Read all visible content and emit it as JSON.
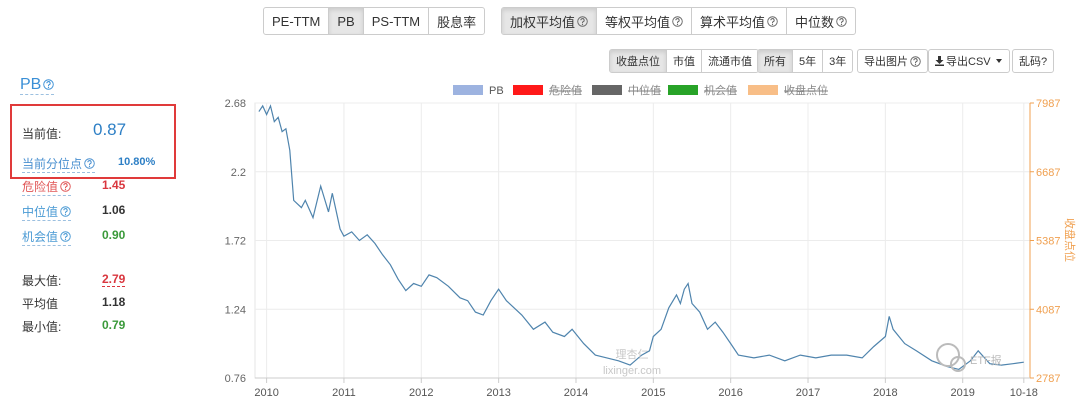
{
  "toolbar": {
    "metrics": [
      "PE-TTM",
      "PB",
      "PS-TTM",
      "股息率"
    ],
    "averages": [
      "加权平均值",
      "等权平均值",
      "算术平均值",
      "中位数"
    ],
    "series_options": [
      "收盘点位",
      "市值",
      "流通市值"
    ],
    "ranges": [
      "所有",
      "5年",
      "3年"
    ],
    "export_image": "导出图片",
    "export_csv": "导出CSV",
    "garbled": "乱码?"
  },
  "panel": {
    "title": "PB",
    "current": {
      "label": "当前值:",
      "value": "0.87"
    },
    "percentile": {
      "label": "当前分位点",
      "value": "10.80%"
    },
    "levels": [
      {
        "label": "危险值",
        "value": "1.45"
      },
      {
        "label": "中位值",
        "value": "1.06"
      },
      {
        "label": "机会值",
        "value": "0.90"
      }
    ],
    "stats": [
      {
        "label": "最大值:",
        "value": "2.79"
      },
      {
        "label": "平均值",
        "value": "1.18"
      },
      {
        "label": "最小值:",
        "value": "0.79"
      }
    ]
  },
  "chart_data": {
    "type": "line",
    "legend": [
      {
        "name": "PB",
        "color": "#9db3e0",
        "enabled": true
      },
      {
        "name": "危险值",
        "color": "#ff0000",
        "enabled": false
      },
      {
        "name": "中位值",
        "color": "#555555",
        "enabled": false
      },
      {
        "name": "机会值",
        "color": "#119911",
        "enabled": false
      },
      {
        "name": "收盘点位",
        "color": "#f7b77a",
        "enabled": false
      }
    ],
    "x": [
      2009.9,
      2009.95,
      2010.0,
      2010.05,
      2010.1,
      2010.15,
      2010.2,
      2010.25,
      2010.3,
      2010.35,
      2010.45,
      2010.5,
      2010.6,
      2010.7,
      2010.8,
      2010.85,
      2010.95,
      2011.0,
      2011.1,
      2011.2,
      2011.3,
      2011.4,
      2011.5,
      2011.6,
      2011.7,
      2011.8,
      2011.9,
      2012.0,
      2012.1,
      2012.2,
      2012.35,
      2012.5,
      2012.6,
      2012.7,
      2012.8,
      2012.9,
      2013.0,
      2013.1,
      2013.3,
      2013.45,
      2013.6,
      2013.7,
      2013.85,
      2013.95,
      2014.1,
      2014.25,
      2014.4,
      2014.55,
      2014.7,
      2014.85,
      2014.95,
      2015.0,
      2015.1,
      2015.2,
      2015.3,
      2015.35,
      2015.4,
      2015.45,
      2015.5,
      2015.6,
      2015.7,
      2015.8,
      2015.9,
      2016.0,
      2016.1,
      2016.3,
      2016.5,
      2016.7,
      2016.9,
      2017.1,
      2017.3,
      2017.5,
      2017.7,
      2017.85,
      2018.0,
      2018.05,
      2018.1,
      2018.25,
      2018.4,
      2018.6,
      2018.8,
      2018.95,
      2019.1,
      2019.2,
      2019.35,
      2019.5,
      2019.65,
      2019.79
    ],
    "series": [
      {
        "name": "PB",
        "color": "#4f84ad",
        "values": [
          2.62,
          2.66,
          2.6,
          2.66,
          2.55,
          2.58,
          2.48,
          2.5,
          2.35,
          2.0,
          1.95,
          2.0,
          1.88,
          2.1,
          1.92,
          2.05,
          1.8,
          1.75,
          1.78,
          1.72,
          1.76,
          1.7,
          1.62,
          1.55,
          1.45,
          1.37,
          1.42,
          1.4,
          1.48,
          1.46,
          1.4,
          1.32,
          1.3,
          1.22,
          1.2,
          1.3,
          1.38,
          1.3,
          1.2,
          1.1,
          1.15,
          1.08,
          1.05,
          1.1,
          1.0,
          0.92,
          0.9,
          0.88,
          0.85,
          0.92,
          0.95,
          1.05,
          1.1,
          1.25,
          1.34,
          1.28,
          1.38,
          1.42,
          1.28,
          1.22,
          1.1,
          1.15,
          1.08,
          1.0,
          0.92,
          0.9,
          0.92,
          0.88,
          0.92,
          0.9,
          0.92,
          0.92,
          0.9,
          0.98,
          1.05,
          1.19,
          1.1,
          1.0,
          0.95,
          0.88,
          0.84,
          0.82,
          0.88,
          0.95,
          0.86,
          0.85,
          0.86,
          0.87
        ]
      }
    ],
    "xlim": [
      2009.85,
      2019.87
    ],
    "xticks": [
      2010,
      2011,
      2012,
      2013,
      2014,
      2015,
      2016,
      2017,
      2018,
      2019,
      {
        "value": 2019.79,
        "label": "10-18"
      }
    ],
    "ylim": [
      0.76,
      2.68
    ],
    "yticks": [
      2.68,
      2.2,
      1.72,
      1.24,
      0.76
    ],
    "y2label": "收盘点位",
    "y2lim": [
      2787,
      7987
    ],
    "y2ticks": [
      7987,
      6687,
      5387,
      4087,
      2787
    ],
    "grid": true
  },
  "watermarks": {
    "brand": "理杏仁",
    "site": "lixinger.com",
    "account": "ETF报"
  }
}
